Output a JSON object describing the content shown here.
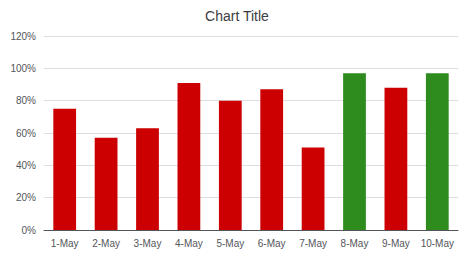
{
  "chart_data": {
    "type": "bar",
    "title": "Chart Title",
    "categories": [
      "1-May",
      "2-May",
      "3-May",
      "4-May",
      "5-May",
      "6-May",
      "7-May",
      "8-May",
      "9-May",
      "10-May"
    ],
    "values": [
      0.75,
      0.57,
      0.63,
      0.91,
      0.8,
      0.87,
      0.51,
      0.97,
      0.88,
      0.97
    ],
    "colors": [
      "#cc0000",
      "#cc0000",
      "#cc0000",
      "#cc0000",
      "#cc0000",
      "#cc0000",
      "#cc0000",
      "#2e8b1e",
      "#cc0000",
      "#2e8b1e"
    ],
    "ylim": [
      0,
      1.2
    ],
    "yticks": [
      {
        "value": 0,
        "label": "0%"
      },
      {
        "value": 0.2,
        "label": "20%"
      },
      {
        "value": 0.4,
        "label": "40%"
      },
      {
        "value": 0.6,
        "label": "60%"
      },
      {
        "value": 0.8,
        "label": "80%"
      },
      {
        "value": 1.0,
        "label": "100%"
      },
      {
        "value": 1.2,
        "label": "120%"
      }
    ],
    "grid": true
  }
}
